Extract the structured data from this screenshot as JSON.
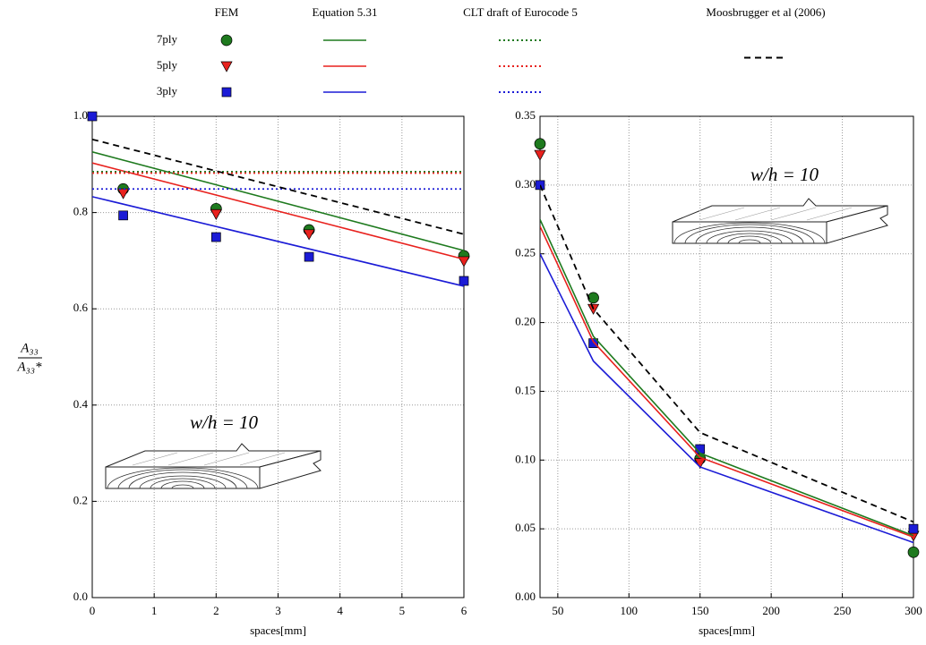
{
  "legend": {
    "columns": [
      "FEM",
      "Equation 5.31",
      "CLT draft of Eurocode 5",
      "Moosbrugger et al (2006)"
    ],
    "rows": [
      "7ply",
      "5ply",
      "3ply"
    ]
  },
  "chart_data": [
    {
      "type": "line",
      "xlabel": "spaces[mm]",
      "ylabel": {
        "numerator": "A₃₃",
        "denominator": "A₃₃*"
      },
      "annotation": "w/h = 10",
      "xlim": [
        0,
        6
      ],
      "xticks": [
        0,
        1,
        2,
        3,
        4,
        5,
        6
      ],
      "ylim": [
        0,
        1.0
      ],
      "yticks": [
        {
          "value": 0,
          "label": "0.0"
        },
        {
          "value": 0.2,
          "label": "0.2"
        },
        {
          "value": 0.4,
          "label": "0.4"
        },
        {
          "value": 0.6,
          "label": "0.6"
        },
        {
          "value": 0.8,
          "label": "0.8"
        },
        {
          "value": 1.0,
          "label": "1.0"
        }
      ],
      "grid": true,
      "series": [
        {
          "name": "7ply",
          "method": "FEM",
          "style": "marker",
          "marker": "circle",
          "color": "#1e7a1e",
          "x": [
            0.5,
            2,
            3.5,
            6
          ],
          "values": [
            0.849,
            0.808,
            0.764,
            0.71
          ]
        },
        {
          "name": "5ply",
          "method": "FEM",
          "style": "marker",
          "marker": "triangle",
          "color": "#e8211d",
          "x": [
            0.5,
            2,
            3.5,
            6
          ],
          "values": [
            0.84,
            0.797,
            0.755,
            0.699
          ]
        },
        {
          "name": "3ply",
          "method": "FEM",
          "style": "marker",
          "marker": "square",
          "color": "#1b1bd6",
          "x": [
            0,
            0.5,
            2,
            3.5,
            6
          ],
          "values": [
            1.0,
            0.794,
            0.749,
            0.708,
            0.658
          ]
        },
        {
          "name": "7ply",
          "method": "Equation 5.31",
          "style": "solid",
          "color": "#1e7a1e",
          "x": [
            0,
            6
          ],
          "values": [
            0.926,
            0.721
          ]
        },
        {
          "name": "5ply",
          "method": "Equation 5.31",
          "style": "solid",
          "color": "#e8211d",
          "x": [
            0,
            6
          ],
          "values": [
            0.903,
            0.703
          ]
        },
        {
          "name": "3ply",
          "method": "Equation 5.31",
          "style": "solid",
          "color": "#1b1bd6",
          "x": [
            0,
            6
          ],
          "values": [
            0.833,
            0.647
          ]
        },
        {
          "name": "7ply",
          "method": "CLT draft of Eurocode 5",
          "style": "dotted",
          "color": "#1e7a1e",
          "x": [
            0,
            6
          ],
          "values": [
            0.885,
            0.885
          ]
        },
        {
          "name": "5ply",
          "method": "CLT draft of Eurocode 5",
          "style": "dotted",
          "color": "#e8211d",
          "x": [
            0,
            6
          ],
          "values": [
            0.882,
            0.882
          ]
        },
        {
          "name": "3ply",
          "method": "CLT draft of Eurocode 5",
          "style": "dotted",
          "color": "#1b1bd6",
          "x": [
            0,
            6
          ],
          "values": [
            0.849,
            0.849
          ]
        },
        {
          "method": "Moosbrugger et al (2006)",
          "style": "dashed",
          "color": "#000000",
          "x": [
            0,
            6
          ],
          "values": [
            0.952,
            0.755
          ]
        }
      ]
    },
    {
      "type": "line",
      "xlabel": "spaces[mm]",
      "annotation": "w/h = 10",
      "xlim": [
        37.5,
        300
      ],
      "xticks": [
        50,
        100,
        150,
        200,
        250,
        300
      ],
      "ylim": [
        0,
        0.35
      ],
      "yticks": [
        {
          "value": 0,
          "label": "0.00"
        },
        {
          "value": 0.05,
          "label": "0.05"
        },
        {
          "value": 0.1,
          "label": "0.10"
        },
        {
          "value": 0.15,
          "label": "0.15"
        },
        {
          "value": 0.2,
          "label": "0.20"
        },
        {
          "value": 0.25,
          "label": "0.25"
        },
        {
          "value": 0.3,
          "label": "0.30"
        },
        {
          "value": 0.35,
          "label": "0.35"
        }
      ],
      "grid": true,
      "series": [
        {
          "name": "7ply",
          "method": "FEM",
          "style": "marker",
          "marker": "circle",
          "color": "#1e7a1e",
          "x": [
            37.5,
            75,
            150,
            300
          ],
          "values": [
            0.33,
            0.218,
            0.101,
            0.033
          ]
        },
        {
          "name": "5ply",
          "method": "FEM",
          "style": "marker",
          "marker": "triangle",
          "color": "#e8211d",
          "x": [
            37.5,
            75,
            150,
            300
          ],
          "values": [
            0.322,
            0.21,
            0.098,
            0.045
          ]
        },
        {
          "name": "3ply",
          "method": "FEM",
          "style": "marker",
          "marker": "square",
          "color": "#1b1bd6",
          "x": [
            37.5,
            75,
            150,
            300
          ],
          "values": [
            0.3,
            0.185,
            0.108,
            0.05
          ]
        },
        {
          "name": "7ply",
          "method": "Equation 5.31",
          "style": "solid",
          "color": "#1e7a1e",
          "x": [
            37.5,
            75,
            150,
            300
          ],
          "values": [
            0.275,
            0.19,
            0.105,
            0.045
          ]
        },
        {
          "name": "5ply",
          "method": "Equation 5.31",
          "style": "solid",
          "color": "#e8211d",
          "x": [
            37.5,
            75,
            150,
            300
          ],
          "values": [
            0.27,
            0.186,
            0.102,
            0.044
          ]
        },
        {
          "name": "3ply",
          "method": "Equation 5.31",
          "style": "solid",
          "color": "#1b1bd6",
          "x": [
            37.5,
            75,
            150,
            300
          ],
          "values": [
            0.25,
            0.172,
            0.095,
            0.04
          ]
        },
        {
          "method": "Moosbrugger et al (2006)",
          "style": "dashed",
          "color": "#000000",
          "x": [
            37.5,
            75,
            150,
            300
          ],
          "values": [
            0.3,
            0.21,
            0.12,
            0.055
          ]
        }
      ]
    }
  ]
}
